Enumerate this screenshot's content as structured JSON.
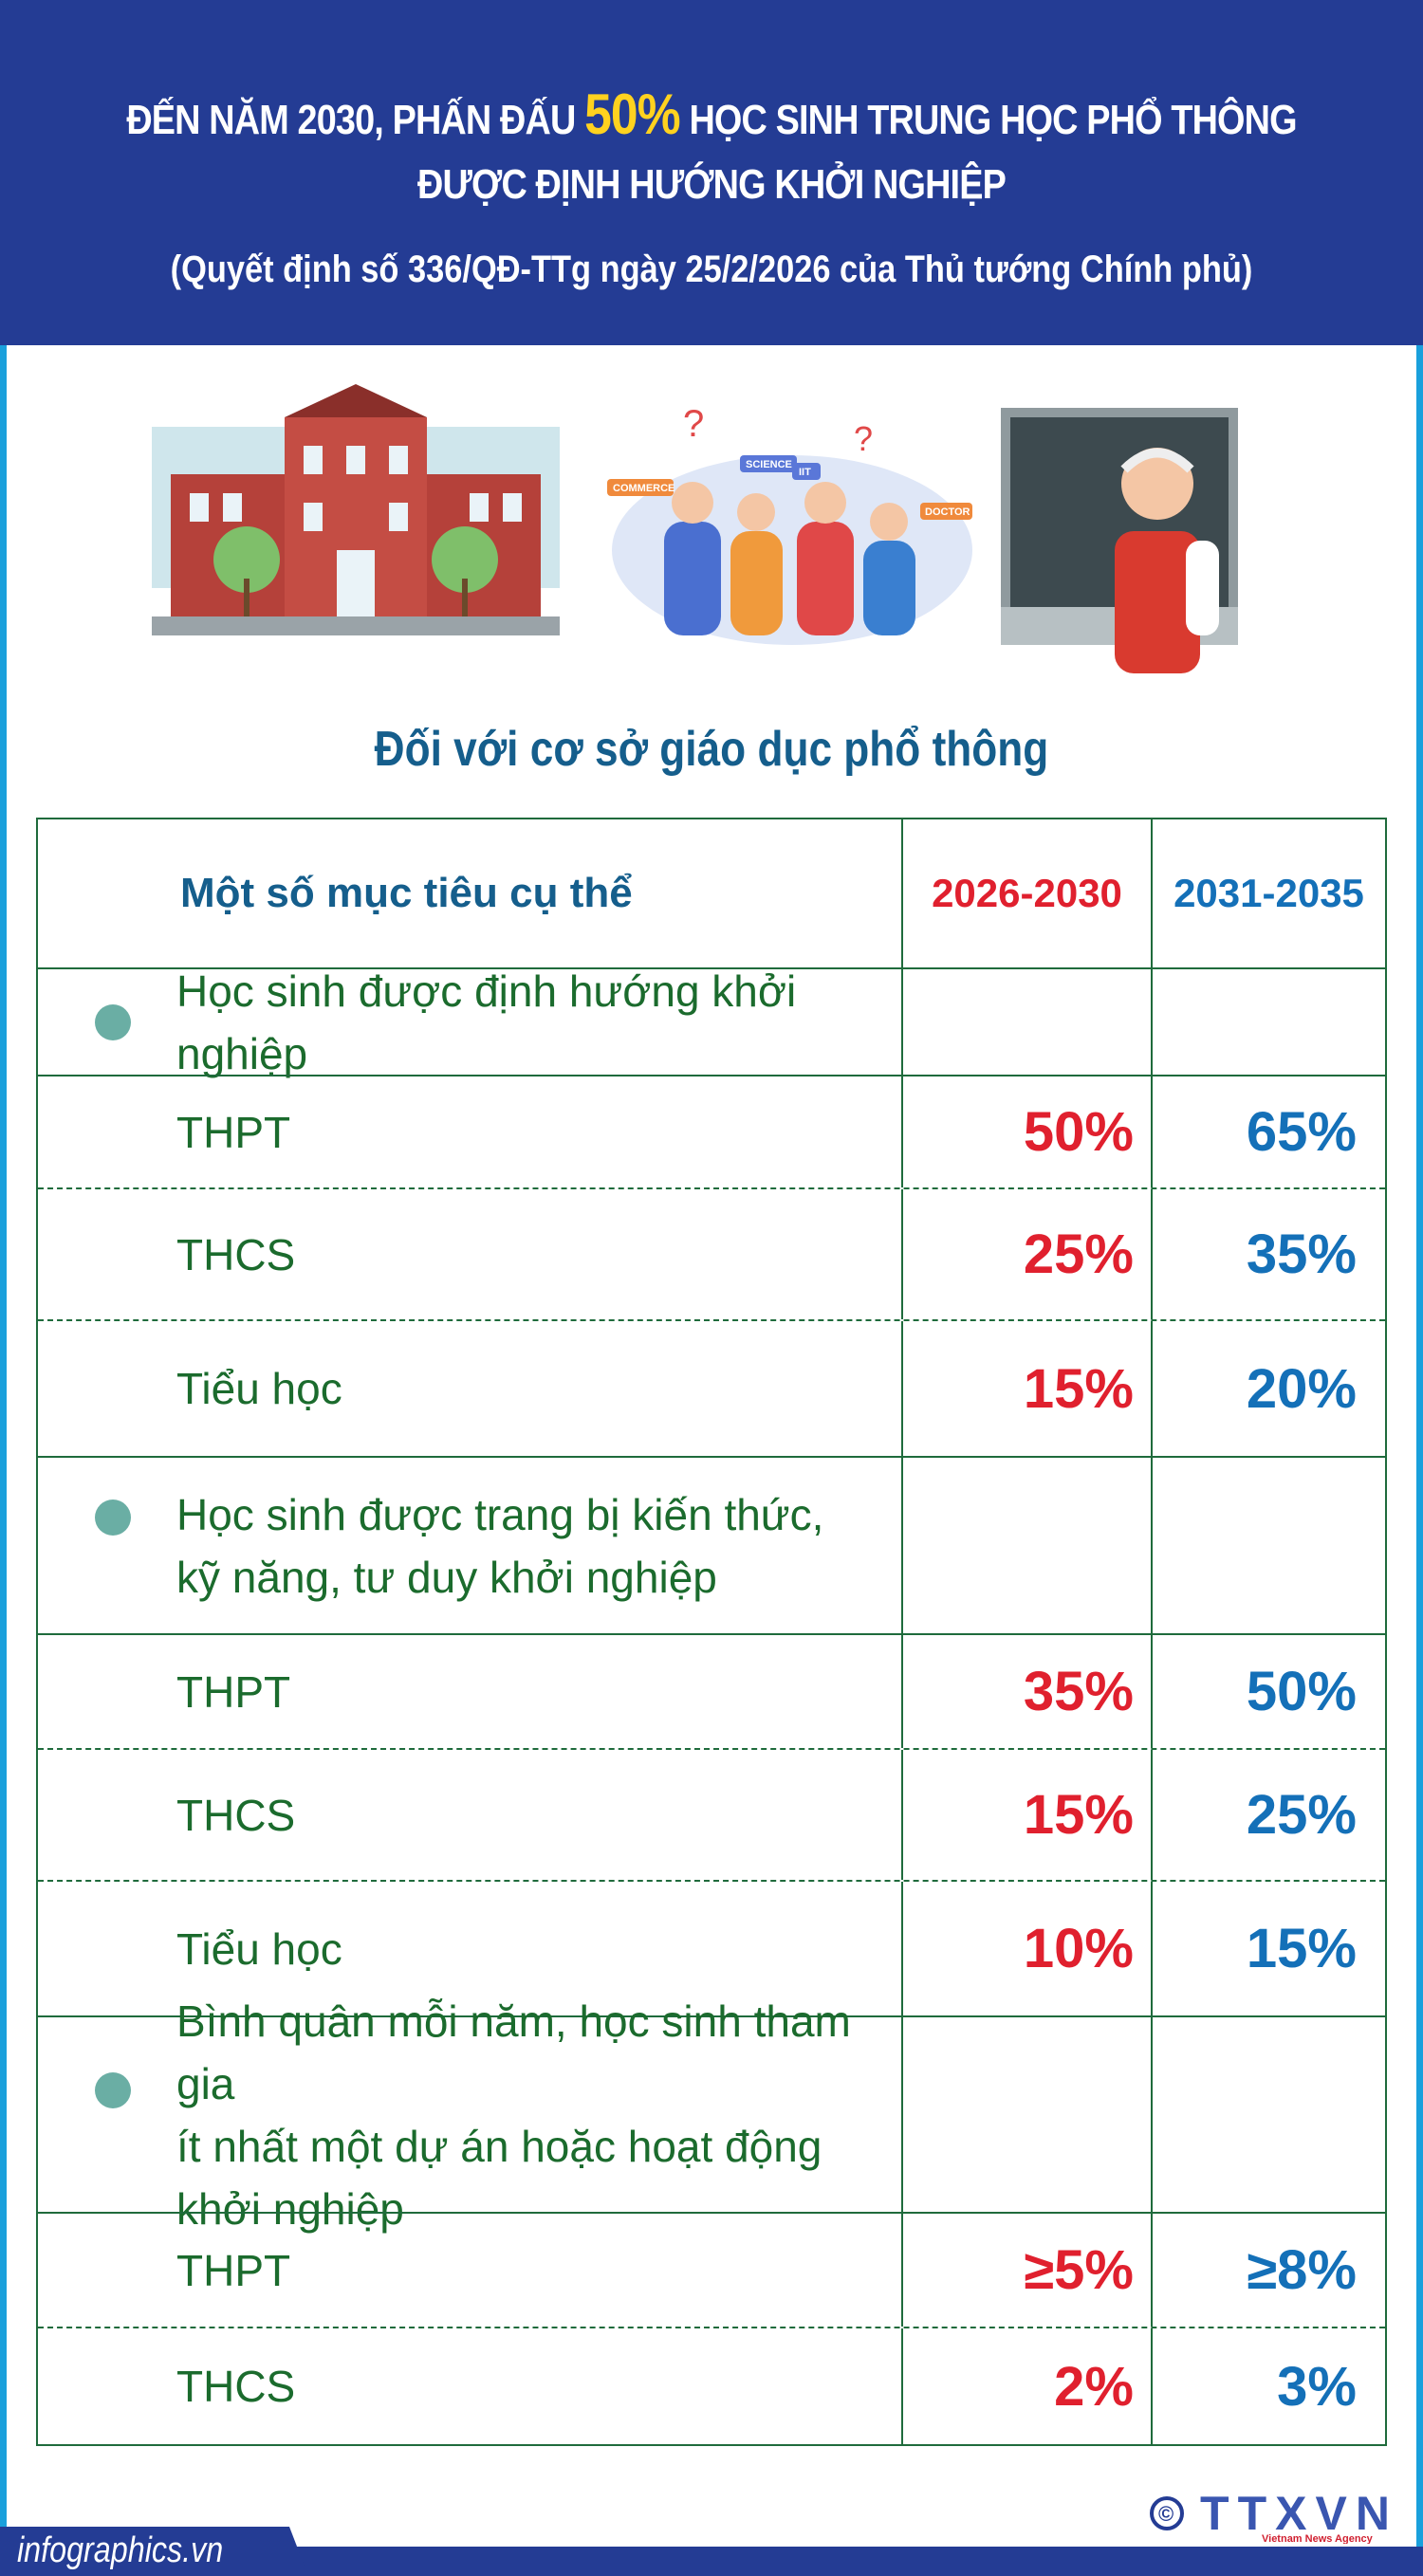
{
  "header": {
    "line1_pre": "ĐẾN NĂM 2030, PHẤN ĐẤU",
    "line1_highlight": "50%",
    "line1_post": "HỌC SINH TRUNG HỌC PHỔ THÔNG",
    "line2": "ĐƯỢC ĐỊNH HƯỚNG KHỞI NGHIỆP",
    "line3": "(Quyết định số 336/QĐ-TTg ngày 25/2/2026 của Thủ tướng Chính phủ)"
  },
  "illustration_labels": [
    "COMMERCE",
    "SCIENCE",
    "IIT",
    "DOCTOR"
  ],
  "subtitle": "Đối với cơ sở  giáo dục phổ thông",
  "table": {
    "headers": [
      "Một số mục tiêu cụ thể",
      "2026-2030",
      "2031-2035"
    ],
    "sections": [
      {
        "title": "Học sinh được định hướng khởi nghiệp",
        "rows": [
          {
            "label": "THPT",
            "v1": "50%",
            "v2": "65%"
          },
          {
            "label": "THCS",
            "v1": "25%",
            "v2": "35%"
          },
          {
            "label": "Tiểu học",
            "v1": "15%",
            "v2": "20%"
          }
        ]
      },
      {
        "title_l1": "Học sinh được trang bị kiến thức,",
        "title_l2": "kỹ năng, tư duy khởi nghiệp",
        "rows": [
          {
            "label": "THPT",
            "v1": "35%",
            "v2": "50%"
          },
          {
            "label": "THCS",
            "v1": "15%",
            "v2": "25%"
          },
          {
            "label": "Tiểu học",
            "v1": "10%",
            "v2": "15%"
          }
        ]
      },
      {
        "title_l1": "Bình quân mỗi năm, học sinh tham gia",
        "title_l2": "ít nhất một dự án hoặc hoạt động khởi nghiệp",
        "rows": [
          {
            "label": "THPT",
            "v1": "≥5%",
            "v2": "≥8%"
          },
          {
            "label": "THCS",
            "v1": "2%",
            "v2": "3%"
          }
        ]
      }
    ]
  },
  "footer": {
    "site": "infographics.vn",
    "logo": "TTXVN",
    "logo_sub": "Vietnam News Agency",
    "copyright": "©"
  },
  "colors": {
    "header_bg": "#243c94",
    "highlight": "#ffd21f",
    "period1": "#e0202e",
    "period2": "#1470b8",
    "label_green": "#1b6b2d",
    "border": "#1aa0dc"
  }
}
